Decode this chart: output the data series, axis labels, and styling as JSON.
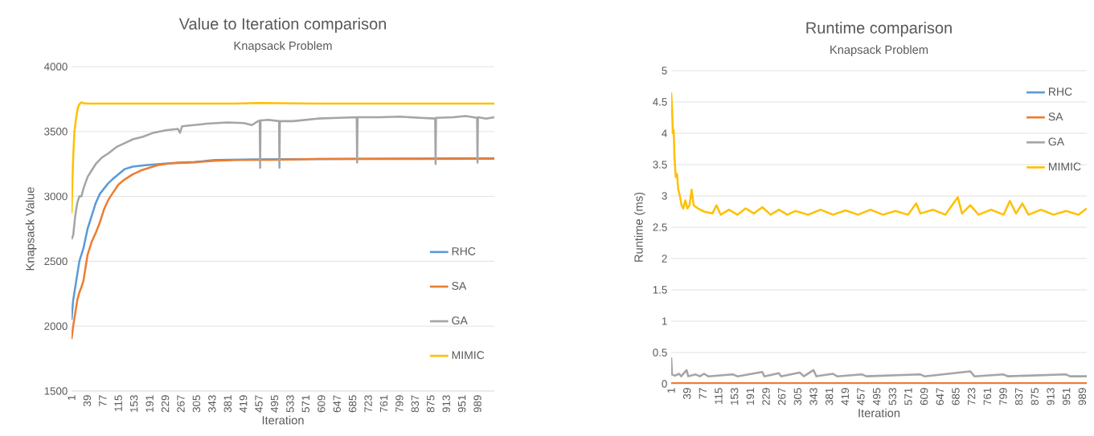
{
  "chart_data": [
    {
      "type": "line",
      "title": "Value to Iteration comparison",
      "subtitle": "Knapsack Problem",
      "xlabel": "Iteration",
      "ylabel": "Knapsack Value",
      "xlim": [
        1,
        1030
      ],
      "xticks": [
        1,
        39,
        77,
        115,
        153,
        191,
        229,
        267,
        305,
        343,
        381,
        419,
        457,
        495,
        533,
        571,
        609,
        647,
        685,
        723,
        761,
        799,
        837,
        875,
        913,
        951,
        989
      ],
      "ylim": [
        1500,
        4000
      ],
      "yticks": [
        1500,
        2000,
        2500,
        3000,
        3500,
        4000
      ],
      "grid": "y",
      "legend": "bottom right",
      "series": [
        {
          "name": "RHC",
          "color": "#5b9bd5",
          "x": [
            1,
            5,
            10,
            15,
            20,
            30,
            40,
            50,
            60,
            70,
            80,
            90,
            100,
            115,
            130,
            150,
            180,
            220,
            260,
            300,
            350,
            450,
            600,
            800,
            1030
          ],
          "values": [
            2050,
            2200,
            2300,
            2400,
            2500,
            2600,
            2750,
            2850,
            2950,
            3020,
            3060,
            3100,
            3130,
            3170,
            3210,
            3230,
            3240,
            3250,
            3260,
            3265,
            3280,
            3285,
            null,
            null,
            3295
          ]
        },
        {
          "name": "SA",
          "color": "#ed7d31",
          "x": [
            1,
            5,
            10,
            15,
            20,
            25,
            30,
            35,
            40,
            50,
            60,
            70,
            80,
            90,
            100,
            115,
            130,
            150,
            170,
            190,
            210,
            240,
            300,
            350,
            400,
            500,
            600,
            1030
          ],
          "values": [
            1900,
            2000,
            2100,
            2200,
            2260,
            2300,
            2350,
            2450,
            2550,
            2650,
            2720,
            2800,
            2900,
            2970,
            3020,
            3090,
            3130,
            3170,
            3200,
            3220,
            3240,
            3255,
            3262,
            3275,
            3280,
            3282,
            3288,
            3290
          ]
        },
        {
          "name": "GA",
          "color": "#a5a5a5",
          "x": [
            1,
            5,
            10,
            15,
            20,
            25,
            30,
            40,
            50,
            60,
            75,
            90,
            110,
            130,
            150,
            175,
            200,
            230,
            260,
            265,
            270,
            330,
            380,
            420,
            440,
            455,
            459,
            460,
            461,
            480,
            506,
            507,
            508,
            540,
            600,
            650,
            695,
            696,
            697,
            750,
            800,
            850,
            886,
            887,
            888,
            930,
            960,
            988,
            989,
            990,
            1010,
            1030
          ],
          "values": [
            2670,
            2700,
            2850,
            2950,
            3000,
            3000,
            3060,
            3150,
            3200,
            3250,
            3300,
            3330,
            3380,
            3410,
            3440,
            3460,
            3490,
            3510,
            3520,
            3490,
            3540,
            3560,
            3570,
            3565,
            3550,
            3580,
            3585,
            3220,
            3585,
            3590,
            3580,
            3220,
            3580,
            3580,
            3600,
            3605,
            3610,
            3260,
            3610,
            3610,
            3615,
            3605,
            3600,
            3250,
            3605,
            3610,
            3620,
            3605,
            3260,
            3610,
            3600,
            3610
          ]
        },
        {
          "name": "MIMIC",
          "color": "#ffc000",
          "x": [
            1,
            3,
            5,
            8,
            12,
            16,
            20,
            25,
            30,
            40,
            200,
            400,
            455,
            600,
            800,
            1030
          ],
          "values": [
            2870,
            3100,
            3300,
            3500,
            3600,
            3680,
            3710,
            3725,
            3718,
            3715,
            3715,
            3715,
            3720,
            3715,
            3715,
            3715
          ]
        }
      ]
    },
    {
      "type": "line",
      "title": "Runtime comparison",
      "subtitle": "Knapsack Problem",
      "xlabel": "Iteration",
      "ylabel": "Runtime (ms)",
      "xlim": [
        1,
        1000
      ],
      "xticks": [
        1,
        39,
        77,
        115,
        153,
        191,
        229,
        267,
        305,
        343,
        381,
        419,
        457,
        495,
        533,
        571,
        609,
        647,
        685,
        723,
        761,
        799,
        837,
        875,
        913,
        951,
        989
      ],
      "ylim": [
        0,
        5
      ],
      "yticks": [
        0,
        0.5,
        1,
        1.5,
        2,
        2.5,
        3,
        3.5,
        4,
        4.5,
        5
      ],
      "grid": "y",
      "legend": "top right",
      "series": [
        {
          "name": "RHC",
          "color": "#5b9bd5"
        },
        {
          "name": "SA",
          "color": "#ed7d31",
          "x": [
            1,
            1000
          ],
          "values": [
            0.01,
            0.01
          ]
        },
        {
          "name": "GA",
          "color": "#a5a5a5",
          "x": [
            1,
            3,
            10,
            20,
            25,
            38,
            42,
            60,
            70,
            80,
            90,
            150,
            160,
            220,
            225,
            260,
            265,
            310,
            320,
            343,
            350,
            390,
            400,
            460,
            470,
            600,
            610,
            720,
            730,
            800,
            810,
            950,
            960,
            1000
          ],
          "values": [
            0.42,
            0.15,
            0.13,
            0.16,
            0.12,
            0.22,
            0.12,
            0.15,
            0.12,
            0.16,
            0.12,
            0.15,
            0.12,
            0.19,
            0.12,
            0.17,
            0.12,
            0.18,
            0.12,
            0.22,
            0.12,
            0.16,
            0.12,
            0.15,
            0.12,
            0.15,
            0.12,
            0.2,
            0.12,
            0.15,
            0.12,
            0.15,
            0.12,
            0.12
          ]
        },
        {
          "name": "MIMIC",
          "color": "#ffc000",
          "x": [
            1,
            3,
            5,
            7,
            9,
            12,
            15,
            18,
            22,
            26,
            30,
            35,
            40,
            45,
            50,
            55,
            65,
            80,
            100,
            110,
            120,
            140,
            160,
            180,
            200,
            220,
            240,
            260,
            280,
            300,
            330,
            360,
            390,
            420,
            450,
            480,
            510,
            540,
            570,
            590,
            600,
            630,
            660,
            690,
            700,
            720,
            740,
            770,
            800,
            815,
            830,
            845,
            860,
            890,
            920,
            950,
            980,
            1000
          ],
          "values": [
            4.65,
            4.4,
            4.0,
            4.05,
            3.6,
            3.3,
            3.35,
            3.1,
            3.0,
            2.85,
            2.8,
            2.93,
            2.8,
            2.85,
            3.1,
            2.85,
            2.8,
            2.75,
            2.72,
            2.85,
            2.7,
            2.78,
            2.7,
            2.8,
            2.72,
            2.82,
            2.7,
            2.78,
            2.7,
            2.76,
            2.7,
            2.78,
            2.7,
            2.77,
            2.7,
            2.78,
            2.7,
            2.76,
            2.7,
            2.88,
            2.72,
            2.78,
            2.7,
            2.98,
            2.72,
            2.85,
            2.7,
            2.78,
            2.7,
            2.92,
            2.72,
            2.88,
            2.7,
            2.78,
            2.7,
            2.76,
            2.7,
            2.8
          ]
        }
      ]
    }
  ]
}
